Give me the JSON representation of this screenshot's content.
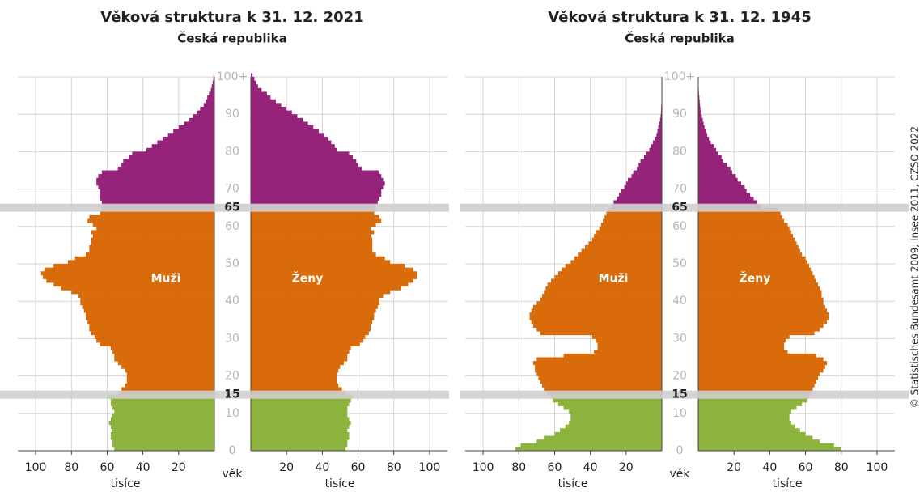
{
  "chart_data": [
    {
      "type": "pyramid",
      "title": "Věková struktura k 31. 12. 2021",
      "subtitle": "Česká republika",
      "xlabel": "tisíce",
      "ylabel": "věk",
      "xlim": [
        0,
        110
      ],
      "xticks": [
        20,
        40,
        60,
        80,
        100
      ],
      "ylim": [
        0,
        100
      ],
      "yticks": [
        0,
        10,
        20,
        30,
        40,
        50,
        60,
        70,
        80,
        90,
        {
          "value": 100,
          "label": "100+"
        }
      ],
      "highlight_yticks": [
        15,
        65
      ],
      "grid": true,
      "colors": [
        "#8cb33b",
        "#d96b0b",
        "#952379"
      ],
      "y": [
        0,
        1,
        2,
        3,
        4,
        5,
        6,
        7,
        8,
        9,
        10,
        11,
        12,
        13,
        14,
        15,
        16,
        17,
        18,
        19,
        20,
        21,
        22,
        23,
        24,
        25,
        26,
        27,
        28,
        29,
        30,
        31,
        32,
        33,
        34,
        35,
        36,
        37,
        38,
        39,
        40,
        41,
        42,
        43,
        44,
        45,
        46,
        47,
        48,
        49,
        50,
        51,
        52,
        53,
        54,
        55,
        56,
        57,
        58,
        59,
        60,
        61,
        62,
        63,
        64,
        65,
        66,
        67,
        68,
        69,
        70,
        71,
        72,
        73,
        74,
        75,
        76,
        77,
        78,
        79,
        80,
        81,
        82,
        83,
        84,
        85,
        86,
        87,
        88,
        89,
        90,
        91,
        92,
        93,
        94,
        95,
        96,
        97,
        98,
        99,
        100
      ],
      "series": [
        {
          "name": "Muži",
          "values": [
            56,
            57,
            57,
            58,
            58,
            57,
            58,
            59,
            58,
            57,
            56,
            57,
            58,
            58,
            60,
            54,
            52,
            50,
            49,
            49,
            49,
            50,
            52,
            54,
            56,
            56,
            57,
            58,
            64,
            66,
            67,
            69,
            70,
            70,
            71,
            72,
            72,
            73,
            74,
            75,
            75,
            76,
            80,
            86,
            90,
            94,
            96,
            97,
            95,
            90,
            82,
            78,
            72,
            70,
            70,
            69,
            69,
            68,
            69,
            66,
            68,
            71,
            70,
            64,
            63,
            63,
            63,
            64,
            64,
            64,
            65,
            66,
            66,
            65,
            63,
            54,
            52,
            51,
            48,
            46,
            38,
            35,
            32,
            29,
            26,
            23,
            20,
            17,
            14,
            12,
            10,
            8,
            6,
            5,
            4,
            3,
            2,
            1.5,
            1,
            0.6,
            0.5
          ]
        },
        {
          "name": "Ženy",
          "values": [
            53,
            54,
            54,
            55,
            55,
            54,
            55,
            56,
            55,
            54,
            54,
            54,
            55,
            56,
            57,
            53,
            51,
            49,
            48,
            48,
            48,
            49,
            50,
            52,
            54,
            54,
            55,
            56,
            61,
            63,
            64,
            66,
            67,
            67,
            68,
            69,
            69,
            70,
            71,
            72,
            72,
            74,
            78,
            84,
            88,
            91,
            93,
            93,
            91,
            86,
            78,
            75,
            70,
            68,
            68,
            68,
            68,
            67,
            69,
            67,
            70,
            73,
            72,
            69,
            70,
            70,
            71,
            72,
            73,
            73,
            74,
            75,
            74,
            73,
            72,
            62,
            60,
            59,
            57,
            55,
            48,
            47,
            45,
            43,
            41,
            38,
            35,
            32,
            29,
            26,
            23,
            20,
            17,
            14,
            11,
            9,
            6,
            4,
            3,
            2,
            1
          ]
        }
      ]
    },
    {
      "type": "pyramid",
      "title": "Věková struktura k 31. 12. 1945",
      "subtitle": "Česká republika",
      "xlabel": "tisíce",
      "ylabel": "věk",
      "xlim": [
        0,
        110
      ],
      "xticks": [
        20,
        40,
        60,
        80,
        100
      ],
      "ylim": [
        0,
        100
      ],
      "yticks": [
        0,
        10,
        20,
        30,
        40,
        50,
        60,
        70,
        80,
        90,
        {
          "value": 100,
          "label": "100+"
        }
      ],
      "highlight_yticks": [
        15,
        65
      ],
      "grid": true,
      "colors": [
        "#8cb33b",
        "#d96b0b",
        "#952379"
      ],
      "y": [
        0,
        1,
        2,
        3,
        4,
        5,
        6,
        7,
        8,
        9,
        10,
        11,
        12,
        13,
        14,
        15,
        16,
        17,
        18,
        19,
        20,
        21,
        22,
        23,
        24,
        25,
        26,
        27,
        28,
        29,
        30,
        31,
        32,
        33,
        34,
        35,
        36,
        37,
        38,
        39,
        40,
        41,
        42,
        43,
        44,
        45,
        46,
        47,
        48,
        49,
        50,
        51,
        52,
        53,
        54,
        55,
        56,
        57,
        58,
        59,
        60,
        61,
        62,
        63,
        64,
        65,
        66,
        67,
        68,
        69,
        70,
        71,
        72,
        73,
        74,
        75,
        76,
        77,
        78,
        79,
        80,
        81,
        82,
        83,
        84,
        85,
        86,
        87,
        88,
        89,
        90,
        91,
        92,
        93,
        94,
        95,
        96,
        97,
        98,
        99,
        100
      ],
      "series": [
        {
          "name": "Muži",
          "values": [
            82,
            79,
            70,
            66,
            60,
            57,
            54,
            52,
            51,
            51,
            52,
            55,
            58,
            61,
            62,
            64,
            66,
            67,
            68,
            69,
            70,
            71,
            71,
            72,
            70,
            55,
            38,
            36,
            36,
            37,
            39,
            68,
            70,
            72,
            73,
            74,
            74,
            73,
            72,
            70,
            68,
            67,
            66,
            65,
            64,
            62,
            60,
            58,
            56,
            54,
            51,
            49,
            47,
            45,
            43,
            41,
            39,
            38,
            37,
            35,
            34,
            33,
            32,
            31,
            30,
            28,
            27,
            25,
            24,
            23,
            21,
            20,
            19,
            17,
            16,
            14,
            13,
            12,
            10,
            9,
            7,
            6,
            5,
            4,
            3,
            2.5,
            2,
            1.5,
            1,
            0.7,
            0.5,
            0.4,
            0.3,
            0.2,
            0.1,
            0.1,
            0.1,
            0,
            0,
            0,
            0
          ]
        },
        {
          "name": "Ženy",
          "values": [
            80,
            76,
            68,
            64,
            60,
            57,
            54,
            52,
            51,
            51,
            52,
            55,
            58,
            61,
            62,
            63,
            64,
            65,
            66,
            67,
            68,
            70,
            71,
            72,
            70,
            66,
            50,
            48,
            48,
            49,
            51,
            65,
            68,
            70,
            72,
            73,
            73,
            72,
            71,
            70,
            70,
            69,
            69,
            68,
            67,
            66,
            65,
            64,
            63,
            62,
            61,
            60,
            58,
            57,
            56,
            55,
            54,
            53,
            52,
            51,
            50,
            48,
            47,
            46,
            45,
            35,
            33,
            31,
            29,
            27,
            26,
            24,
            22,
            21,
            19,
            18,
            16,
            14,
            13,
            11,
            10,
            9,
            7,
            6,
            5,
            4.5,
            3.5,
            3,
            2.5,
            2,
            1.5,
            1.2,
            1,
            0.8,
            0.6,
            0.4,
            0.3,
            0.2,
            0.1,
            0.1,
            0
          ]
        }
      ]
    }
  ],
  "credit": "© Statistisches Bundesamt 2009, Insee 2011, CZSO 2022"
}
